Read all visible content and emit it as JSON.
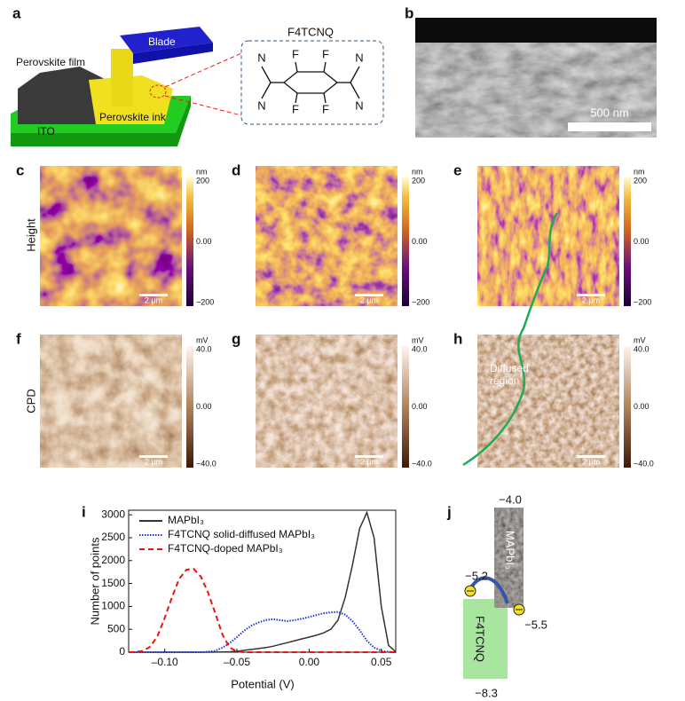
{
  "panels": {
    "a": {
      "label": "a",
      "molecule_title": "F4TCNQ",
      "labels": [
        "Perovskite film",
        "Blade",
        "Perovskite ink",
        "ITO"
      ],
      "atoms": [
        "N",
        "F",
        "F",
        "N",
        "N",
        "F",
        "F",
        "N"
      ]
    },
    "b": {
      "label": "b",
      "scale": "500 nm"
    },
    "height_row": {
      "row_label": "Height",
      "unit": "nm",
      "colorbar": [
        "200",
        "0.00",
        "−200"
      ]
    },
    "cpd_row": {
      "row_label": "CPD",
      "unit": "mV",
      "colorbar": [
        "40.0",
        "0.00",
        "−40.0"
      ]
    },
    "c": {
      "label": "c",
      "scale": "2 μm"
    },
    "d": {
      "label": "d",
      "scale": "2 μm"
    },
    "e": {
      "label": "e",
      "scale": "2 μm"
    },
    "f": {
      "label": "f",
      "scale": "2 μm"
    },
    "g": {
      "label": "g",
      "scale": "2 μm"
    },
    "h": {
      "label": "h",
      "scale": "2 μm",
      "annotation": "Diffused region"
    },
    "i": {
      "label": "i"
    },
    "j": {
      "label": "j",
      "materials": [
        "MAPbI₃",
        "F4TCNQ"
      ],
      "levels": [
        "−4.0",
        "−5.2",
        "−5.5",
        "−8.3"
      ]
    }
  },
  "chart_data": {
    "type": "line",
    "x_label": "Potential (V)",
    "y_label": "Number of points",
    "xlim": [
      -0.125,
      0.06
    ],
    "ylim": [
      0,
      3100
    ],
    "xticks": [
      {
        "value": -0.1,
        "label": "–0.10"
      },
      {
        "value": -0.05,
        "label": "–0.05"
      },
      {
        "value": 0,
        "label": "0.00"
      },
      {
        "value": 0.05,
        "label": "0.05"
      }
    ],
    "yticks": [
      0,
      500,
      1000,
      1500,
      2000,
      2500,
      3000
    ],
    "x": [
      -0.125,
      -0.12,
      -0.115,
      -0.11,
      -0.105,
      -0.1,
      -0.095,
      -0.09,
      -0.085,
      -0.08,
      -0.075,
      -0.07,
      -0.065,
      -0.06,
      -0.055,
      -0.05,
      -0.045,
      -0.04,
      -0.035,
      -0.03,
      -0.025,
      -0.02,
      -0.015,
      -0.01,
      -0.005,
      0,
      0.005,
      0.01,
      0.015,
      0.02,
      0.025,
      0.03,
      0.035,
      0.04,
      0.045,
      0.05,
      0.055,
      0.06
    ],
    "series": [
      {
        "name": "MAPbI₃",
        "color": "#333333",
        "style": "solid",
        "values": [
          0,
          0,
          0,
          0,
          0,
          0,
          0,
          0,
          0,
          0,
          0,
          0,
          2,
          5,
          10,
          20,
          40,
          60,
          80,
          100,
          130,
          170,
          210,
          250,
          290,
          330,
          370,
          420,
          500,
          700,
          1200,
          1900,
          2700,
          3050,
          2500,
          1000,
          150,
          10
        ]
      },
      {
        "name": "F4TCNQ solid-diffused MAPbI₃",
        "color": "#2233dd",
        "style": "dotted",
        "values": [
          0,
          0,
          0,
          0,
          0,
          0,
          0,
          0,
          0,
          0,
          0,
          10,
          30,
          100,
          200,
          330,
          470,
          580,
          650,
          700,
          720,
          700,
          680,
          700,
          730,
          770,
          810,
          850,
          870,
          880,
          820,
          680,
          480,
          250,
          100,
          30,
          5,
          0
        ]
      },
      {
        "name": "F4TCNQ-doped MAPbI₃",
        "color": "#ee1111",
        "style": "dashed",
        "values": [
          0,
          5,
          30,
          120,
          350,
          750,
          1200,
          1600,
          1800,
          1820,
          1650,
          1300,
          850,
          380,
          100,
          15,
          0,
          0,
          0,
          0,
          0,
          0,
          0,
          0,
          0,
          0,
          0,
          0,
          0,
          0,
          0,
          0,
          0,
          0,
          0,
          0,
          0,
          0
        ]
      }
    ]
  }
}
